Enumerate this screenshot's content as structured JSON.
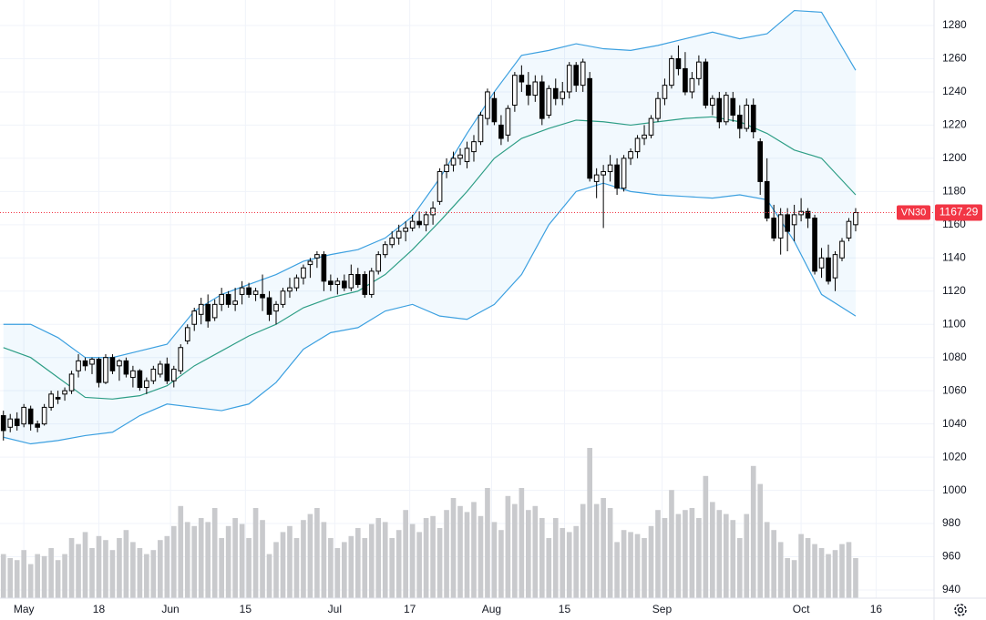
{
  "chart_data": {
    "type": "candlestick",
    "symbol": "VN30",
    "xlim": [
      -0.5,
      136.5
    ],
    "ylim": [
      940,
      1280
    ],
    "yticks": [
      940,
      960,
      980,
      1000,
      1020,
      1040,
      1060,
      1080,
      1100,
      1120,
      1140,
      1160,
      1180,
      1200,
      1220,
      1240,
      1260,
      1280
    ],
    "xticks": [
      {
        "value": 3,
        "label": "May"
      },
      {
        "value": 14,
        "label": "18"
      },
      {
        "value": 24.5,
        "label": "Jun"
      },
      {
        "value": 35.5,
        "label": "15"
      },
      {
        "value": 48.6,
        "label": "Jul"
      },
      {
        "value": 59.6,
        "label": "17"
      },
      {
        "value": 71.6,
        "label": "Aug"
      },
      {
        "value": 82.3,
        "label": "15"
      },
      {
        "value": 96.6,
        "label": "Sep"
      },
      {
        "value": 117,
        "label": "Oct"
      },
      {
        "value": 128,
        "label": "16"
      }
    ],
    "grid": true,
    "up_color": "#ffffff",
    "down_color": "#000000",
    "volume_color": "#c9cacd",
    "vlim": [
      0,
      100
    ],
    "ohlc": [
      [
        1045,
        1048,
        1030,
        1036
      ],
      [
        1038,
        1046,
        1035,
        1043
      ],
      [
        1043,
        1047,
        1036,
        1039
      ],
      [
        1040,
        1052,
        1038,
        1050
      ],
      [
        1049,
        1051,
        1036,
        1040
      ],
      [
        1040,
        1042,
        1035,
        1038
      ],
      [
        1040,
        1052,
        1039,
        1050
      ],
      [
        1050,
        1060,
        1048,
        1058
      ],
      [
        1056,
        1060,
        1052,
        1055
      ],
      [
        1058,
        1062,
        1054,
        1060
      ],
      [
        1060,
        1072,
        1058,
        1070
      ],
      [
        1072,
        1082,
        1068,
        1078
      ],
      [
        1078,
        1080,
        1072,
        1075
      ],
      [
        1076,
        1080,
        1070,
        1079
      ],
      [
        1079,
        1080,
        1062,
        1065
      ],
      [
        1065,
        1082,
        1064,
        1080
      ],
      [
        1080,
        1082,
        1070,
        1072
      ],
      [
        1075,
        1079,
        1066,
        1078
      ],
      [
        1078,
        1080,
        1068,
        1070
      ],
      [
        1068,
        1075,
        1062,
        1072
      ],
      [
        1072,
        1073,
        1060,
        1062
      ],
      [
        1062,
        1068,
        1058,
        1066
      ],
      [
        1066,
        1075,
        1064,
        1073
      ],
      [
        1070,
        1078,
        1068,
        1076
      ],
      [
        1076,
        1080,
        1064,
        1066
      ],
      [
        1066,
        1075,
        1062,
        1073
      ],
      [
        1072,
        1088,
        1070,
        1086
      ],
      [
        1090,
        1100,
        1088,
        1098
      ],
      [
        1100,
        1110,
        1096,
        1108
      ],
      [
        1106,
        1116,
        1100,
        1112
      ],
      [
        1112,
        1118,
        1098,
        1102
      ],
      [
        1104,
        1115,
        1102,
        1112
      ],
      [
        1112,
        1122,
        1108,
        1118
      ],
      [
        1118,
        1120,
        1110,
        1112
      ],
      [
        1112,
        1122,
        1108,
        1114
      ],
      [
        1118,
        1126,
        1112,
        1122
      ],
      [
        1122,
        1125,
        1116,
        1118
      ],
      [
        1118,
        1122,
        1114,
        1120
      ],
      [
        1118,
        1130,
        1108,
        1116
      ],
      [
        1116,
        1120,
        1102,
        1106
      ],
      [
        1108,
        1114,
        1100,
        1112
      ],
      [
        1112,
        1122,
        1110,
        1120
      ],
      [
        1120,
        1128,
        1116,
        1122
      ],
      [
        1122,
        1130,
        1120,
        1128
      ],
      [
        1128,
        1136,
        1124,
        1134
      ],
      [
        1136,
        1140,
        1128,
        1138
      ],
      [
        1140,
        1144,
        1134,
        1142
      ],
      [
        1142,
        1144,
        1120,
        1126
      ],
      [
        1126,
        1130,
        1120,
        1124
      ],
      [
        1124,
        1128,
        1118,
        1126
      ],
      [
        1126,
        1130,
        1120,
        1122
      ],
      [
        1122,
        1136,
        1120,
        1130
      ],
      [
        1130,
        1134,
        1122,
        1124
      ],
      [
        1130,
        1132,
        1116,
        1118
      ],
      [
        1118,
        1134,
        1116,
        1132
      ],
      [
        1132,
        1144,
        1130,
        1142
      ],
      [
        1142,
        1150,
        1140,
        1148
      ],
      [
        1148,
        1156,
        1146,
        1152
      ],
      [
        1152,
        1160,
        1148,
        1156
      ],
      [
        1156,
        1162,
        1150,
        1158
      ],
      [
        1158,
        1166,
        1156,
        1162
      ],
      [
        1162,
        1168,
        1158,
        1160
      ],
      [
        1160,
        1168,
        1156,
        1166
      ],
      [
        1166,
        1174,
        1160,
        1170
      ],
      [
        1174,
        1194,
        1172,
        1192
      ],
      [
        1192,
        1200,
        1188,
        1196
      ],
      [
        1196,
        1204,
        1192,
        1200
      ],
      [
        1200,
        1206,
        1196,
        1202
      ],
      [
        1198,
        1210,
        1194,
        1206
      ],
      [
        1204,
        1214,
        1198,
        1210
      ],
      [
        1210,
        1228,
        1208,
        1226
      ],
      [
        1224,
        1242,
        1220,
        1240
      ],
      [
        1236,
        1240,
        1220,
        1222
      ],
      [
        1220,
        1226,
        1208,
        1212
      ],
      [
        1214,
        1232,
        1210,
        1230
      ],
      [
        1232,
        1252,
        1228,
        1250
      ],
      [
        1250,
        1256,
        1240,
        1246
      ],
      [
        1244,
        1252,
        1232,
        1238
      ],
      [
        1238,
        1250,
        1234,
        1246
      ],
      [
        1246,
        1250,
        1220,
        1224
      ],
      [
        1226,
        1244,
        1224,
        1242
      ],
      [
        1242,
        1248,
        1232,
        1236
      ],
      [
        1236,
        1246,
        1232,
        1240
      ],
      [
        1240,
        1258,
        1236,
        1256
      ],
      [
        1256,
        1258,
        1240,
        1244
      ],
      [
        1244,
        1260,
        1240,
        1258
      ],
      [
        1248,
        1252,
        1186,
        1188
      ],
      [
        1186,
        1194,
        1176,
        1190
      ],
      [
        1190,
        1196,
        1158,
        1192
      ],
      [
        1192,
        1202,
        1186,
        1196
      ],
      [
        1196,
        1200,
        1178,
        1182
      ],
      [
        1182,
        1202,
        1180,
        1200
      ],
      [
        1200,
        1206,
        1196,
        1204
      ],
      [
        1204,
        1214,
        1200,
        1212
      ],
      [
        1212,
        1220,
        1208,
        1214
      ],
      [
        1214,
        1226,
        1212,
        1224
      ],
      [
        1224,
        1240,
        1222,
        1236
      ],
      [
        1236,
        1248,
        1232,
        1244
      ],
      [
        1244,
        1262,
        1242,
        1260
      ],
      [
        1260,
        1268,
        1250,
        1254
      ],
      [
        1254,
        1264,
        1238,
        1240
      ],
      [
        1240,
        1252,
        1236,
        1248
      ],
      [
        1248,
        1262,
        1244,
        1258
      ],
      [
        1258,
        1260,
        1230,
        1232
      ],
      [
        1232,
        1238,
        1226,
        1236
      ],
      [
        1236,
        1240,
        1218,
        1222
      ],
      [
        1222,
        1240,
        1220,
        1238
      ],
      [
        1236,
        1240,
        1222,
        1226
      ],
      [
        1226,
        1232,
        1212,
        1218
      ],
      [
        1218,
        1236,
        1216,
        1232
      ],
      [
        1232,
        1236,
        1212,
        1216
      ],
      [
        1210,
        1212,
        1178,
        1186
      ],
      [
        1186,
        1200,
        1162,
        1164
      ],
      [
        1164,
        1172,
        1150,
        1152
      ],
      [
        1152,
        1170,
        1142,
        1166
      ],
      [
        1166,
        1170,
        1144,
        1156
      ],
      [
        1160,
        1172,
        1150,
        1166
      ],
      [
        1166,
        1176,
        1162,
        1168
      ],
      [
        1168,
        1170,
        1158,
        1164
      ],
      [
        1164,
        1166,
        1130,
        1132
      ],
      [
        1134,
        1146,
        1128,
        1140
      ],
      [
        1140,
        1148,
        1124,
        1126
      ],
      [
        1128,
        1144,
        1120,
        1142
      ],
      [
        1140,
        1152,
        1138,
        1150
      ],
      [
        1152,
        1164,
        1150,
        1162
      ],
      [
        1160,
        1170,
        1156,
        1167.29
      ]
    ],
    "volume": [
      22,
      20,
      19,
      24,
      17,
      22,
      21,
      25,
      19,
      22,
      30,
      27,
      33,
      25,
      31,
      29,
      24,
      30,
      34,
      28,
      25,
      22,
      24,
      29,
      31,
      36,
      46,
      38,
      36,
      40,
      38,
      45,
      30,
      36,
      40,
      37,
      30,
      45,
      39,
      22,
      28,
      33,
      36,
      30,
      39,
      42,
      45,
      38,
      30,
      25,
      28,
      31,
      35,
      30,
      37,
      40,
      38,
      30,
      34,
      44,
      37,
      33,
      40,
      41,
      35,
      44,
      50,
      46,
      43,
      48,
      41,
      55,
      38,
      34,
      51,
      47,
      55,
      44,
      46,
      40,
      30,
      40,
      35,
      33,
      36,
      47,
      75,
      47,
      50,
      45,
      28,
      34,
      33,
      32,
      30,
      36,
      44,
      40,
      54,
      42,
      44,
      45,
      40,
      61,
      48,
      44,
      42,
      39,
      30,
      42,
      66,
      57,
      38,
      34,
      28,
      20,
      19,
      32,
      30,
      27,
      25,
      22,
      24,
      27,
      28,
      20
    ],
    "bands": {
      "x": [
        0,
        4,
        8,
        12,
        16,
        20,
        24,
        28,
        32,
        36,
        40,
        44,
        48,
        52,
        56,
        60,
        64,
        68,
        72,
        76,
        80,
        84,
        88,
        92,
        96,
        100,
        104,
        108,
        112,
        116,
        120,
        125
      ],
      "fill": "rgba(33,150,243,0.06)",
      "series": [
        {
          "color": "#3ca0e0",
          "values": [
            1100,
            1100,
            1092,
            1080,
            1080,
            1084,
            1088,
            1108,
            1118,
            1124,
            1130,
            1138,
            1142,
            1145,
            1152,
            1165,
            1188,
            1215,
            1240,
            1262,
            1265,
            1269,
            1266,
            1265,
            1268,
            1272,
            1276,
            1272,
            1275,
            1289,
            1288,
            1253
          ]
        },
        {
          "color": "#2e9e86",
          "values": [
            1086,
            1080,
            1068,
            1056,
            1055,
            1057,
            1063,
            1075,
            1084,
            1093,
            1100,
            1110,
            1116,
            1120,
            1130,
            1145,
            1162,
            1180,
            1200,
            1212,
            1218,
            1223,
            1222,
            1220,
            1222,
            1224,
            1225,
            1222,
            1215,
            1205,
            1200,
            1178
          ]
        },
        {
          "color": "#3ca0e0",
          "values": [
            1032,
            1028,
            1030,
            1033,
            1035,
            1045,
            1052,
            1050,
            1048,
            1052,
            1065,
            1085,
            1095,
            1098,
            1108,
            1112,
            1105,
            1103,
            1112,
            1130,
            1160,
            1180,
            1185,
            1180,
            1178,
            1177,
            1176,
            1178,
            1175,
            1150,
            1118,
            1105
          ]
        }
      ]
    }
  }
}
